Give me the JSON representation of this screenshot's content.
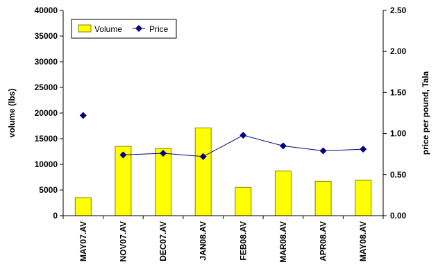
{
  "chart_data": {
    "type": "bar",
    "categories": [
      "MAY07.AV",
      "NOV07.AV",
      "DEC07.AV",
      "JAN08.AV",
      "FEB08.AV",
      "MAR08.AV",
      "APR08.AV",
      "MAY08.AV"
    ],
    "series": [
      {
        "name": "Volume",
        "type": "bar",
        "axis": "left",
        "values": [
          3500,
          13500,
          13100,
          17100,
          5500,
          8700,
          6700,
          6900
        ],
        "color": "#ffff00",
        "edge_color": "#808000"
      },
      {
        "name": "Price",
        "type": "line",
        "axis": "right",
        "values": [
          1.22,
          0.74,
          0.76,
          0.72,
          0.98,
          0.85,
          0.79,
          0.81
        ],
        "color": "#000080"
      }
    ],
    "ylabel": "volume (lbs)",
    "y2label": "price per pound, Tala",
    "ylim": [
      0,
      40000
    ],
    "y2lim": [
      0,
      2.5
    ],
    "yticks": [
      "0",
      "5000",
      "10000",
      "15000",
      "20000",
      "25000",
      "30000",
      "35000",
      "40000"
    ],
    "y2ticks": [
      "0.00",
      "0.50",
      "1.00",
      "1.50",
      "2.00",
      "2.50"
    ],
    "grid": false,
    "legend": {
      "placement": "top-left",
      "entries": [
        "Volume",
        "Price"
      ]
    },
    "line_gap_after_first_point": true
  }
}
